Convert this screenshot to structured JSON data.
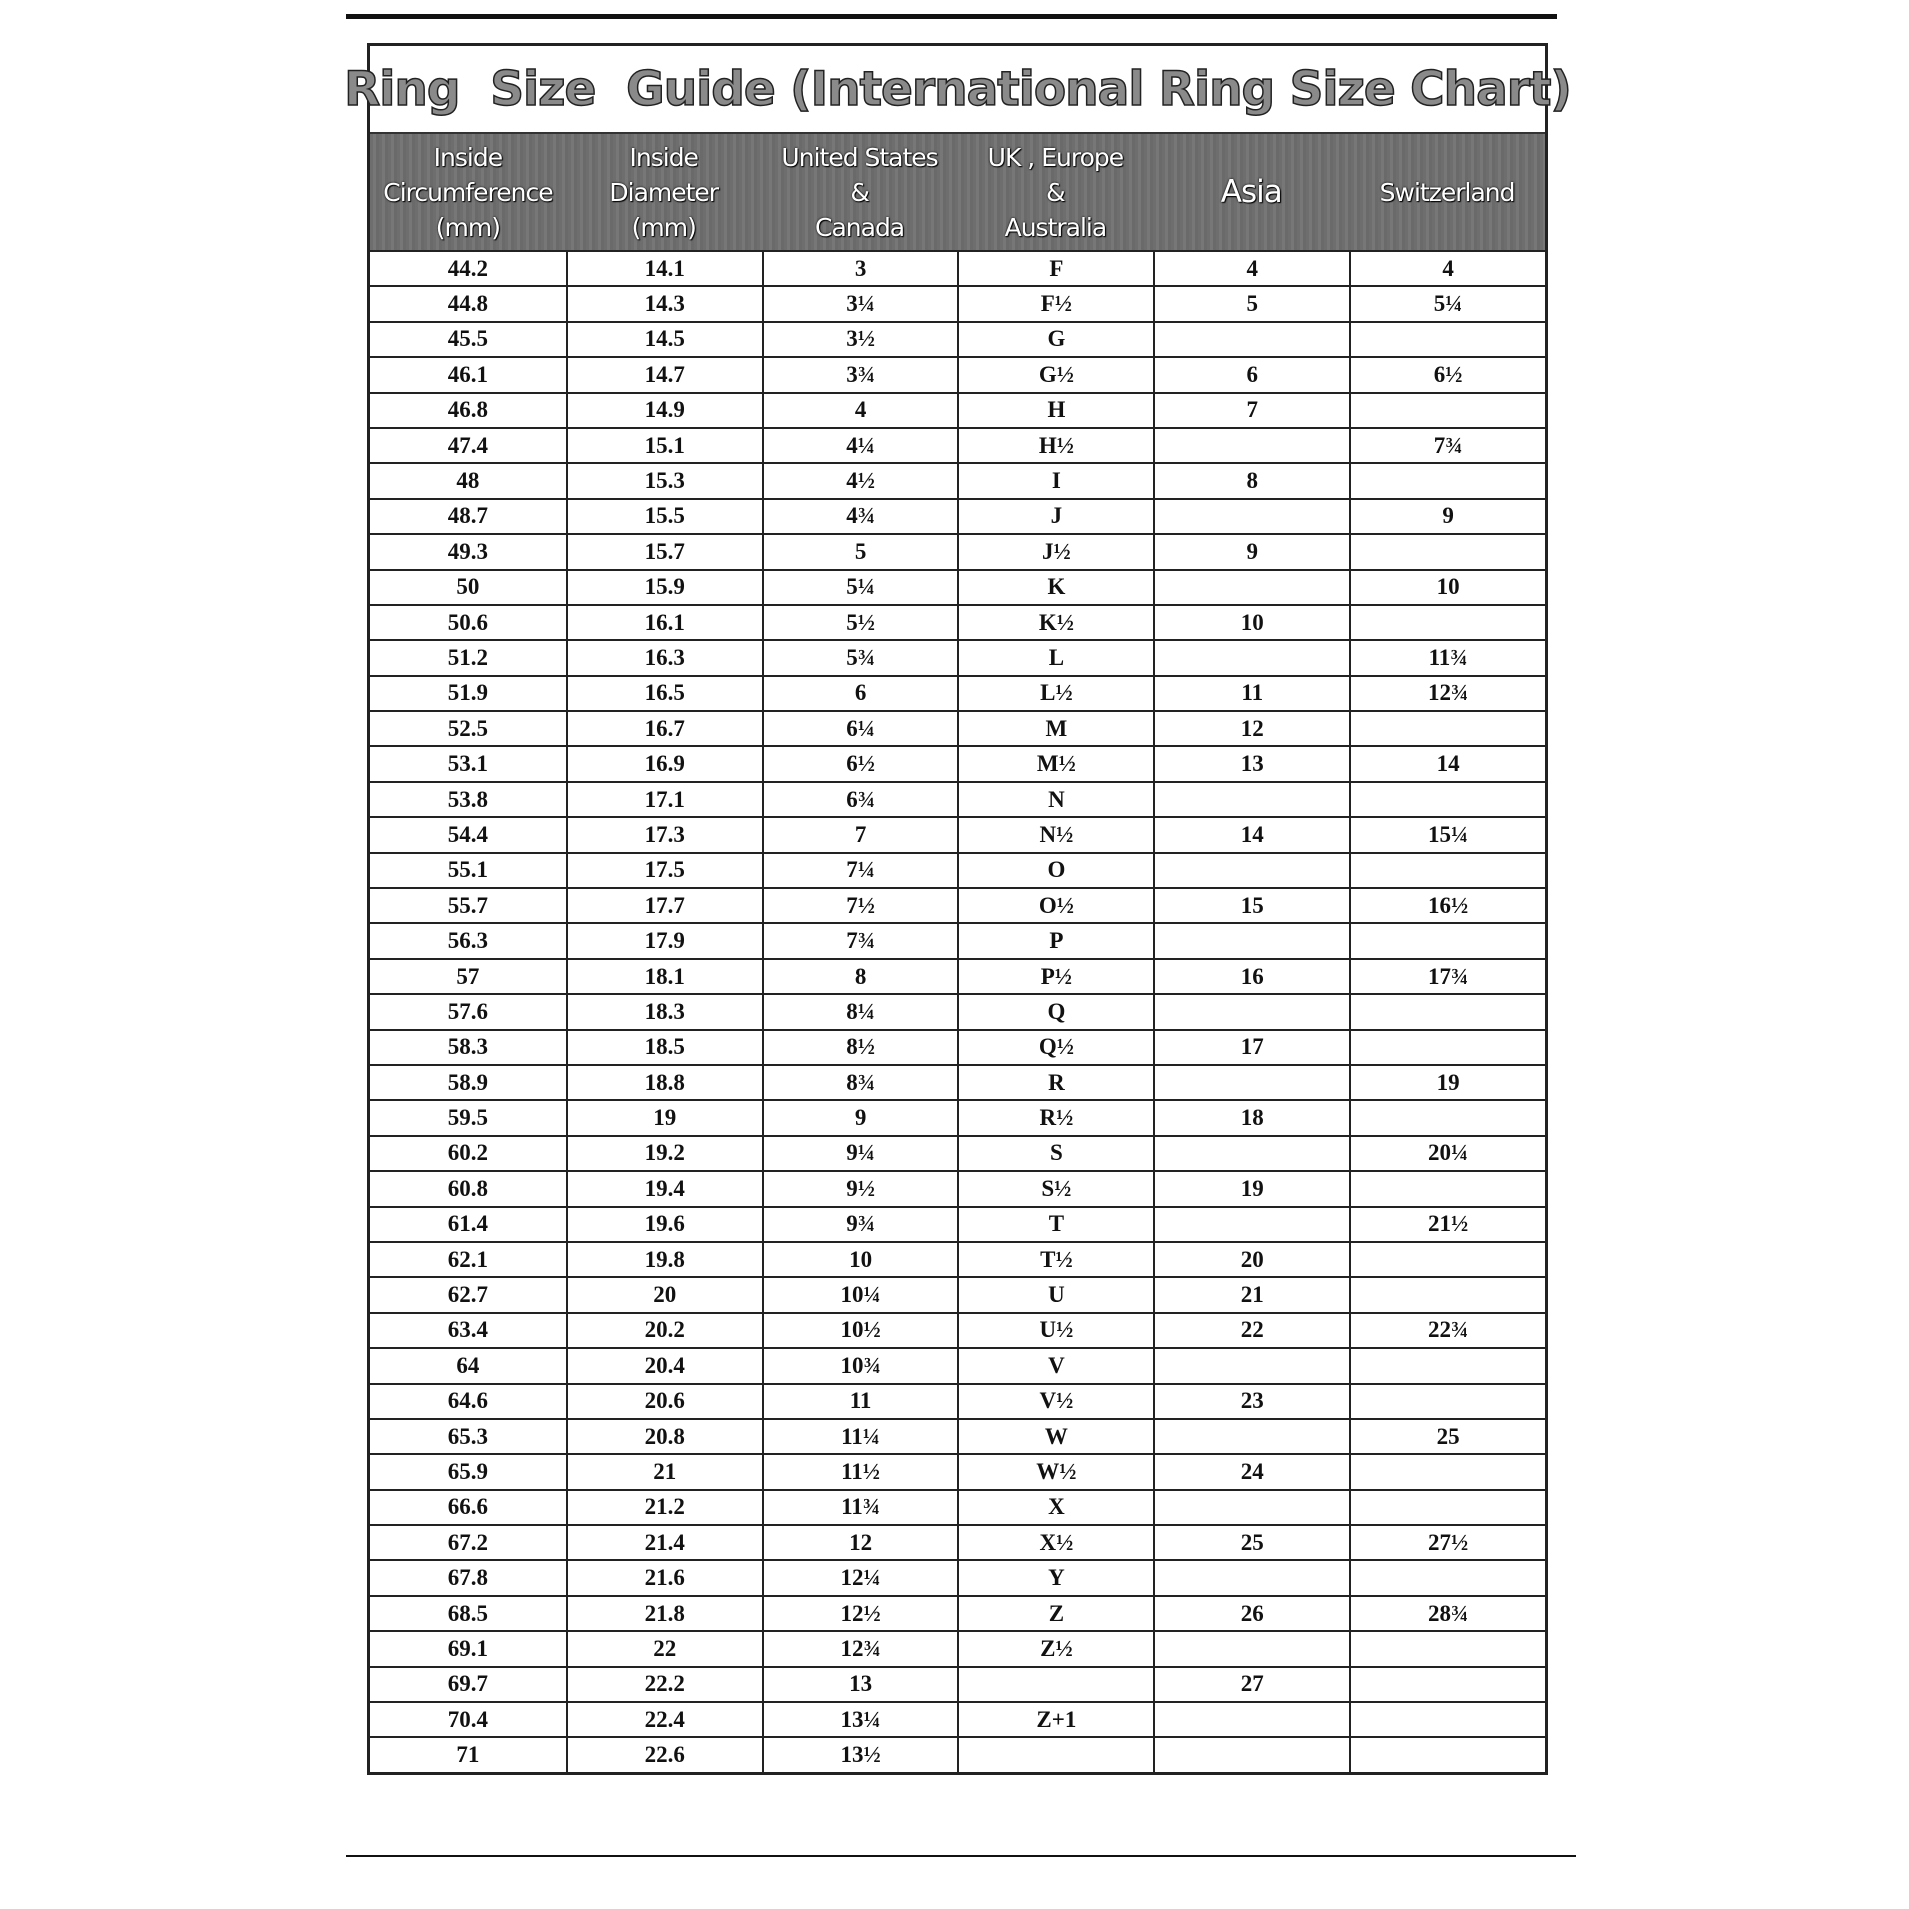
{
  "title": "Ring  Size  Guide (International Ring Size Chart)",
  "columns": [
    "Inside\nCircumference\n(mm)",
    "Inside\nDiameter\n(mm)",
    "United States\n&\nCanada",
    "UK , Europe\n&\nAustralia",
    "Asia",
    "Switzerland"
  ],
  "rows": [
    [
      "44.2",
      "14.1",
      "3",
      "F",
      "4",
      "4"
    ],
    [
      "44.8",
      "14.3",
      "3¼",
      "F½",
      "5",
      "5¼"
    ],
    [
      "45.5",
      "14.5",
      "3½",
      "G",
      "",
      ""
    ],
    [
      "46.1",
      "14.7",
      "3¾",
      "G½",
      "6",
      "6½"
    ],
    [
      "46.8",
      "14.9",
      "4",
      "H",
      "7",
      ""
    ],
    [
      "47.4",
      "15.1",
      "4¼",
      "H½",
      "",
      "7¾"
    ],
    [
      "48",
      "15.3",
      "4½",
      "I",
      "8",
      ""
    ],
    [
      "48.7",
      "15.5",
      "4¾",
      "J",
      "",
      "9"
    ],
    [
      "49.3",
      "15.7",
      "5",
      "J½",
      "9",
      ""
    ],
    [
      "50",
      "15.9",
      "5¼",
      "K",
      "",
      "10"
    ],
    [
      "50.6",
      "16.1",
      "5½",
      "K½",
      "10",
      ""
    ],
    [
      "51.2",
      "16.3",
      "5¾",
      "L",
      "",
      "11¾"
    ],
    [
      "51.9",
      "16.5",
      "6",
      "L½",
      "11",
      "12¾"
    ],
    [
      "52.5",
      "16.7",
      "6¼",
      "M",
      "12",
      ""
    ],
    [
      "53.1",
      "16.9",
      "6½",
      "M½",
      "13",
      "14"
    ],
    [
      "53.8",
      "17.1",
      "6¾",
      "N",
      "",
      ""
    ],
    [
      "54.4",
      "17.3",
      "7",
      "N½",
      "14",
      "15¼"
    ],
    [
      "55.1",
      "17.5",
      "7¼",
      "O",
      "",
      ""
    ],
    [
      "55.7",
      "17.7",
      "7½",
      "O½",
      "15",
      "16½"
    ],
    [
      "56.3",
      "17.9",
      "7¾",
      "P",
      "",
      ""
    ],
    [
      "57",
      "18.1",
      "8",
      "P½",
      "16",
      "17¾"
    ],
    [
      "57.6",
      "18.3",
      "8¼",
      "Q",
      "",
      ""
    ],
    [
      "58.3",
      "18.5",
      "8½",
      "Q½",
      "17",
      ""
    ],
    [
      "58.9",
      "18.8",
      "8¾",
      "R",
      "",
      "19"
    ],
    [
      "59.5",
      "19",
      "9",
      "R½",
      "18",
      ""
    ],
    [
      "60.2",
      "19.2",
      "9¼",
      "S",
      "",
      "20¼"
    ],
    [
      "60.8",
      "19.4",
      "9½",
      "S½",
      "19",
      ""
    ],
    [
      "61.4",
      "19.6",
      "9¾",
      "T",
      "",
      "21½"
    ],
    [
      "62.1",
      "19.8",
      "10",
      "T½",
      "20",
      ""
    ],
    [
      "62.7",
      "20",
      "10¼",
      "U",
      "21",
      ""
    ],
    [
      "63.4",
      "20.2",
      "10½",
      "U½",
      "22",
      "22¾"
    ],
    [
      "64",
      "20.4",
      "10¾",
      "V",
      "",
      ""
    ],
    [
      "64.6",
      "20.6",
      "11",
      "V½",
      "23",
      ""
    ],
    [
      "65.3",
      "20.8",
      "11¼",
      "W",
      "",
      "25"
    ],
    [
      "65.9",
      "21",
      "11½",
      "W½",
      "24",
      ""
    ],
    [
      "66.6",
      "21.2",
      "11¾",
      "X",
      "",
      ""
    ],
    [
      "67.2",
      "21.4",
      "12",
      "X½",
      "25",
      "27½"
    ],
    [
      "67.8",
      "21.6",
      "12¼",
      "Y",
      "",
      ""
    ],
    [
      "68.5",
      "21.8",
      "12½",
      "Z",
      "26",
      "28¾"
    ],
    [
      "69.1",
      "22",
      "12¾",
      "Z½",
      "",
      ""
    ],
    [
      "69.7",
      "22.2",
      "13",
      "",
      "27",
      ""
    ],
    [
      "70.4",
      "22.4",
      "13¼",
      "Z+1",
      "",
      ""
    ],
    [
      "71",
      "22.6",
      "13½",
      "",
      "",
      ""
    ]
  ]
}
